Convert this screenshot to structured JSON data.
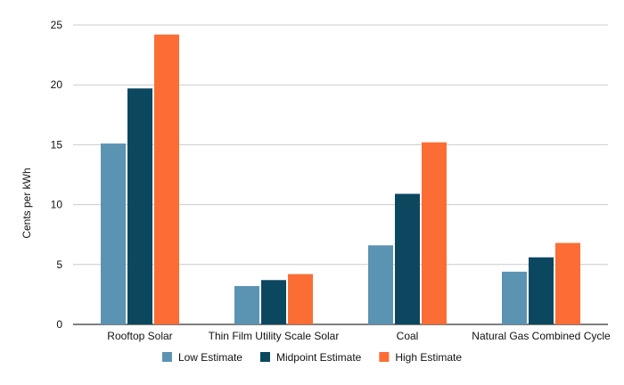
{
  "chart_data": {
    "type": "bar",
    "title": "",
    "xlabel": "",
    "ylabel": "Cents per kWh",
    "ylim": [
      0,
      25
    ],
    "yticks": [
      0,
      5,
      10,
      15,
      20,
      25
    ],
    "grid": true,
    "legend_position": "bottom",
    "categories": [
      "Rooftop Solar",
      "Thin Film Utility Scale Solar",
      "Coal",
      "Natural Gas Combined Cycle"
    ],
    "series": [
      {
        "name": "Low Estimate",
        "color": "#5b93b3",
        "values": [
          15.1,
          3.2,
          6.6,
          4.4
        ]
      },
      {
        "name": "Midpoint Estimate",
        "color": "#0c4760",
        "values": [
          19.7,
          3.7,
          10.9,
          5.6
        ]
      },
      {
        "name": "High Estimate",
        "color": "#fb6d35",
        "values": [
          24.2,
          4.2,
          15.2,
          6.8
        ]
      }
    ]
  }
}
